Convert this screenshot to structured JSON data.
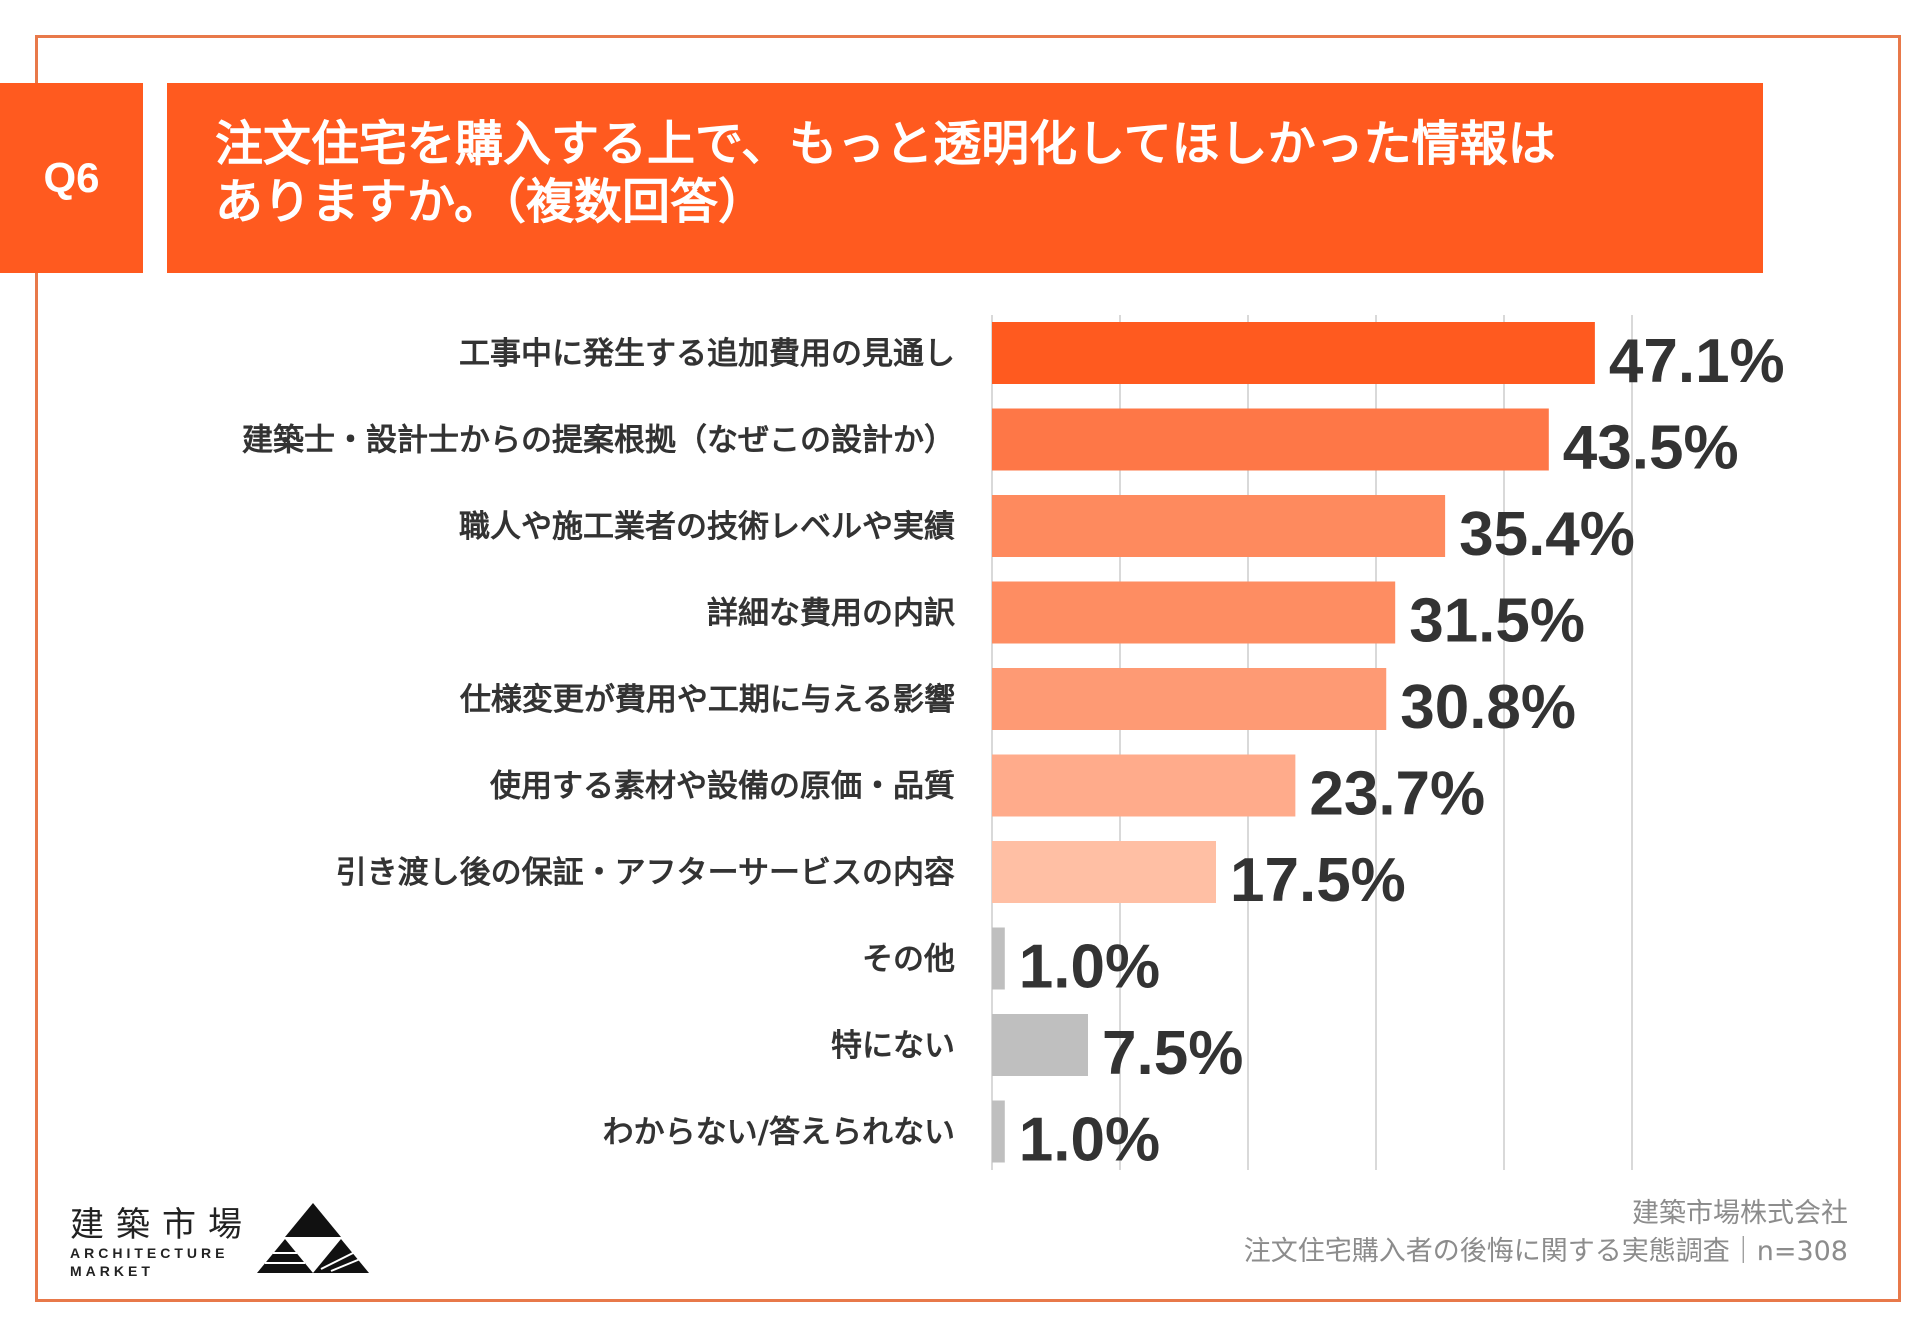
{
  "question": {
    "badge": "Q6",
    "title_line1": "注文住宅を購入する上で、もっと透明化してほしかった情報は",
    "title_line2": "ありますか。（複数回答）"
  },
  "colors": {
    "accent": "#ff5a1f",
    "frame": "#e8794a",
    "grid": "#d9d9d9",
    "gray_bar": "#bfbfbf",
    "text": "#333333"
  },
  "chart_data": {
    "type": "bar",
    "orientation": "horizontal",
    "title": "注文住宅を購入する上で、もっと透明化してほしかった情報はありますか。（複数回答）",
    "unit": "%",
    "xlim": [
      0,
      50
    ],
    "grid": true,
    "categories": [
      "工事中に発生する追加費用の見通し",
      "建築士・設計士からの提案根拠（なぜこの設計か）",
      "職人や施工業者の技術レベルや実績",
      "詳細な費用の内訳",
      "仕様変更が費用や工期に与える影響",
      "使用する素材や設備の原価・品質",
      "引き渡し後の保証・アフターサービスの内容",
      "その他",
      "特にない",
      "わからない/答えられない"
    ],
    "values": [
      47.1,
      43.5,
      35.4,
      31.5,
      30.8,
      23.7,
      17.5,
      1.0,
      7.5,
      1.0
    ],
    "value_labels": [
      "47.1%",
      "43.5%",
      "35.4%",
      "31.5%",
      "30.8%",
      "23.7%",
      "17.5%",
      "1.0%",
      "7.5%",
      "1.0%"
    ],
    "bar_colors": [
      "#ff5a1f",
      "#fe7747",
      "#fe8a5e",
      "#fe8d62",
      "#fe9a74",
      "#ffab8b",
      "#ffbfa4",
      "#bfbfbf",
      "#bfbfbf",
      "#bfbfbf"
    ]
  },
  "footer": {
    "logo_jp": "建築市場",
    "logo_en_line1": "ARCHITECTURE",
    "logo_en_line2": "MARKET",
    "source_line1": "建築市場株式会社",
    "source_line2": "注文住宅購入者の後悔に関する実態調査｜n=308"
  }
}
